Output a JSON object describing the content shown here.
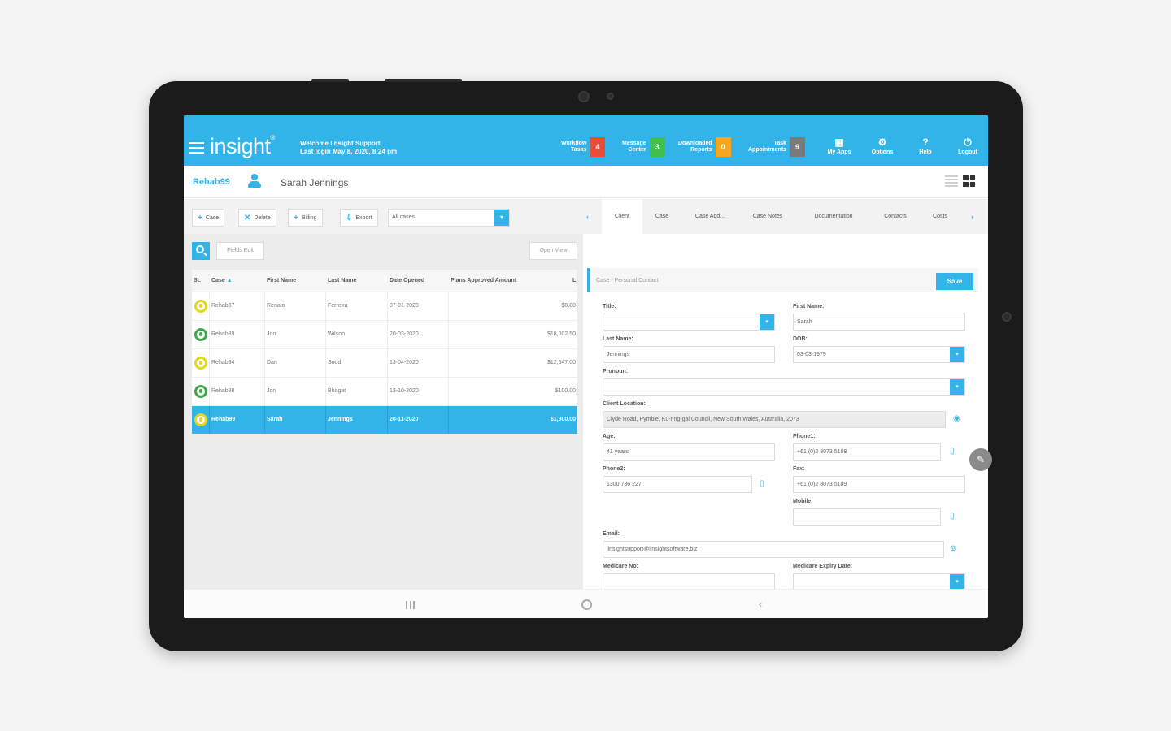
{
  "header": {
    "logo": "insight",
    "logo_mark": "®",
    "welcome_line1": "Welcome iInsight Support",
    "welcome_line2": "Last login May 8, 2020, 8:24 pm",
    "counters": [
      {
        "label1": "Workflow",
        "label2": "Tasks",
        "count": "4",
        "color": "#e74c3c"
      },
      {
        "label1": "Message",
        "label2": "Center",
        "count": "3",
        "color": "#3ec04b"
      },
      {
        "label1": "Downloaded",
        "label2": "Reports",
        "count": "0",
        "color": "#f5a623"
      },
      {
        "label1": "Task",
        "label2": "Appointments",
        "count": "9",
        "color": "#7a7a7a"
      }
    ],
    "icons": [
      {
        "glyph": "▦",
        "label": "My Apps"
      },
      {
        "glyph": "⚙",
        "label": "Options"
      },
      {
        "glyph": "?",
        "label": "Help"
      },
      {
        "glyph": "⏻",
        "label": "Logout"
      }
    ]
  },
  "subheader": {
    "case_id": "Rehab99",
    "client_name": "Sarah Jennings"
  },
  "toolbar": {
    "buttons": [
      {
        "icon": "+",
        "label": "Case"
      },
      {
        "icon": "✕",
        "label": "Delete"
      },
      {
        "icon": "+",
        "label": "Billing"
      },
      {
        "icon": "⇩",
        "label": "Export"
      }
    ],
    "filter_value": "All cases",
    "filter_arrow": "▾",
    "tab_prev": "‹",
    "tab_next": "›",
    "tabs": [
      "Client",
      "Case",
      "Case Add...",
      "Case Notes",
      "Documentation",
      "Contacts",
      "Costs"
    ]
  },
  "list": {
    "fields_edit": "Fields Edit",
    "open_view": "Open View",
    "columns": [
      "St.",
      "Case",
      "First Name",
      "Last Name",
      "Date Opened",
      "Plans Approved Amount",
      "L"
    ],
    "sort_icon": "▲",
    "rows": [
      {
        "status_color": "#e2d81c",
        "case": "Rehab67",
        "first": "Renato",
        "last": "Ferreira",
        "date": "07-01-2020",
        "amount": "$0.00"
      },
      {
        "status_color": "#3ea84c",
        "case": "Rehab89",
        "first": "Jon",
        "last": "Wilson",
        "date": "20-03-2020",
        "amount": "$18,002.50"
      },
      {
        "status_color": "#e2d81c",
        "case": "Rehab94",
        "first": "Dan",
        "last": "Sood",
        "date": "13-04-2020",
        "amount": "$12,647.00"
      },
      {
        "status_color": "#3ea84c",
        "case": "Rehab98",
        "first": "Jon",
        "last": "Bhagat",
        "date": "13-10-2020",
        "amount": "$100.00"
      },
      {
        "status_color": "#e2d81c",
        "case": "Rehab99",
        "first": "Sarah",
        "last": "Jennings",
        "date": "20-11-2020",
        "amount": "$1,900.00"
      }
    ]
  },
  "form": {
    "section_title": "Case - Personal Contact",
    "save_label": "Save",
    "labels": {
      "title": "Title:",
      "first_name": "First Name:",
      "last_name": "Last Name:",
      "dob": "DOB:",
      "pronoun": "Pronoun:",
      "client_location": "Client Location:",
      "age": "Age:",
      "phone1": "Phone1:",
      "phone2": "Phone2:",
      "fax": "Fax:",
      "mobile": "Mobile:",
      "email": "Email:",
      "medicare_no": "Medicare No:",
      "medicare_expiry": "Medicare Expiry Date:"
    },
    "values": {
      "title": "",
      "first_name": "Sarah",
      "last_name": "Jennings",
      "dob": "03-03-1979",
      "pronoun": "",
      "client_location": "Clyde Road, Pymble, Ku-ring-gai Council, New South Wales, Australia, 2073",
      "age": "41 years",
      "phone1": "+61 (0)2 8073 5108",
      "phone2": "1300 736 227",
      "fax": "+61 (0)2 8073 5109",
      "mobile": "",
      "email": "iinsightsupport@iinsightsoftware.biz"
    },
    "dropdown_arrow": "▾",
    "location_icon": "◉",
    "phone_icon": "▯",
    "email_icon": "⊚"
  },
  "fab": {
    "icon": "✎"
  }
}
